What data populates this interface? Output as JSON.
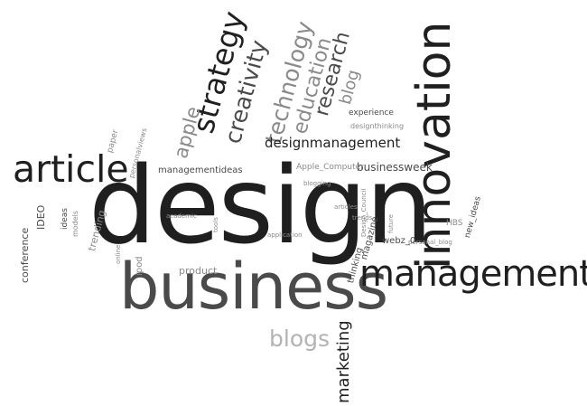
{
  "cloud": {
    "words": {
      "design": "design",
      "business": "business",
      "innovation": "innovation",
      "management": "management",
      "article": "article",
      "strategy": "strategy",
      "creativity": "creativity",
      "technology": "technology",
      "education": "education",
      "research": "research",
      "blog": "blog",
      "apple": "apple",
      "blogs": "blogs",
      "marketing": "marketing",
      "designmanagement": "designmanagement",
      "businessweek": "businessweek",
      "apple_computer": "Apple_Computer",
      "managementideas": "managementideas",
      "experience": "experience",
      "designthinking": "designthinking",
      "conference": "conference",
      "ideo": "IDEO",
      "trending": "trending",
      "ideas": "ideas",
      "models": "models",
      "paper": "paper",
      "personalviews": "personalviews",
      "ipod": "ipod",
      "product": "product",
      "thinking": "thinking",
      "magazine": "magazine",
      "webz_0": "webz_0",
      "hbs": "HBS",
      "new_ideas": "new_ideas",
      "design_council": "Design_Council",
      "personal_blog": "personal_blog",
      "trends": "trends",
      "academic": "academic",
      "application": "application",
      "blogging": "blogging",
      "articles": "articles",
      "online": "online",
      "tools": "tools",
      "future": "future"
    }
  }
}
